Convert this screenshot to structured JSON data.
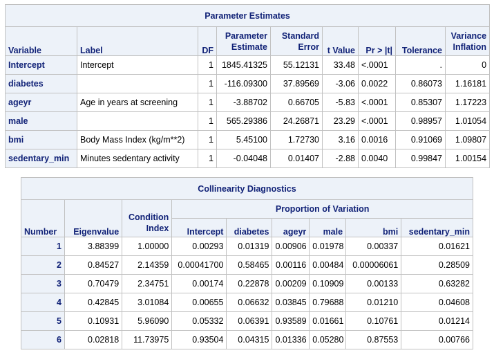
{
  "parameter_estimates": {
    "title": "Parameter Estimates",
    "headers": {
      "variable": "Variable",
      "label": "Label",
      "df": "DF",
      "estimate_1": "Parameter",
      "estimate_2": "Estimate",
      "stderr_1": "Standard",
      "stderr_2": "Error",
      "tvalue": "t Value",
      "prob": "Pr > |t|",
      "tolerance": "Tolerance",
      "vif_1": "Variance",
      "vif_2": "Inflation"
    },
    "rows": [
      {
        "variable": "Intercept",
        "label": "Intercept",
        "df": "1",
        "estimate": "1845.41325",
        "stderr": "55.12131",
        "tvalue": "33.48",
        "prob": "<.0001",
        "tolerance": ".",
        "vif": "0"
      },
      {
        "variable": "diabetes",
        "label": "",
        "df": "1",
        "estimate": "-116.09300",
        "stderr": "37.89569",
        "tvalue": "-3.06",
        "prob": "0.0022",
        "tolerance": "0.86073",
        "vif": "1.16181"
      },
      {
        "variable": "ageyr",
        "label": "Age in years at screening",
        "df": "1",
        "estimate": "-3.88702",
        "stderr": "0.66705",
        "tvalue": "-5.83",
        "prob": "<.0001",
        "tolerance": "0.85307",
        "vif": "1.17223"
      },
      {
        "variable": "male",
        "label": "",
        "df": "1",
        "estimate": "565.29386",
        "stderr": "24.26871",
        "tvalue": "23.29",
        "prob": "<.0001",
        "tolerance": "0.98957",
        "vif": "1.01054"
      },
      {
        "variable": "bmi",
        "label": "Body Mass Index (kg/m**2)",
        "df": "1",
        "estimate": "5.45100",
        "stderr": "1.72730",
        "tvalue": "3.16",
        "prob": "0.0016",
        "tolerance": "0.91069",
        "vif": "1.09807"
      },
      {
        "variable": "sedentary_min",
        "label": "Minutes sedentary activity",
        "df": "1",
        "estimate": "-0.04048",
        "stderr": "0.01407",
        "tvalue": "-2.88",
        "prob": "0.0040",
        "tolerance": "0.99847",
        "vif": "1.00154"
      }
    ]
  },
  "collinearity": {
    "title": "Collinearity Diagnostics",
    "group_header": "Proportion of Variation",
    "headers": {
      "number": "Number",
      "eigenvalue": "Eigenvalue",
      "condition_1": "Condition",
      "condition_2": "Index",
      "intercept": "Intercept",
      "diabetes": "diabetes",
      "ageyr": "ageyr",
      "male": "male",
      "bmi": "bmi",
      "sedentary_min": "sedentary_min"
    },
    "rows": [
      {
        "number": "1",
        "eigenvalue": "3.88399",
        "condition": "1.00000",
        "intercept": "0.00293",
        "diabetes": "0.01319",
        "ageyr": "0.00906",
        "male": "0.01978",
        "bmi": "0.00337",
        "sedentary_min": "0.01621"
      },
      {
        "number": "2",
        "eigenvalue": "0.84527",
        "condition": "2.14359",
        "intercept": "0.00041700",
        "diabetes": "0.58465",
        "ageyr": "0.00116",
        "male": "0.00484",
        "bmi": "0.00006061",
        "sedentary_min": "0.28509"
      },
      {
        "number": "3",
        "eigenvalue": "0.70479",
        "condition": "2.34751",
        "intercept": "0.00174",
        "diabetes": "0.22878",
        "ageyr": "0.00209",
        "male": "0.10909",
        "bmi": "0.00133",
        "sedentary_min": "0.63282"
      },
      {
        "number": "4",
        "eigenvalue": "0.42845",
        "condition": "3.01084",
        "intercept": "0.00655",
        "diabetes": "0.06632",
        "ageyr": "0.03845",
        "male": "0.79688",
        "bmi": "0.01210",
        "sedentary_min": "0.04608"
      },
      {
        "number": "5",
        "eigenvalue": "0.10931",
        "condition": "5.96090",
        "intercept": "0.05332",
        "diabetes": "0.06391",
        "ageyr": "0.93589",
        "male": "0.01661",
        "bmi": "0.10761",
        "sedentary_min": "0.01214"
      },
      {
        "number": "6",
        "eigenvalue": "0.02818",
        "condition": "11.73975",
        "intercept": "0.93504",
        "diabetes": "0.04315",
        "ageyr": "0.01336",
        "male": "0.05280",
        "bmi": "0.87553",
        "sedentary_min": "0.00766"
      }
    ]
  }
}
